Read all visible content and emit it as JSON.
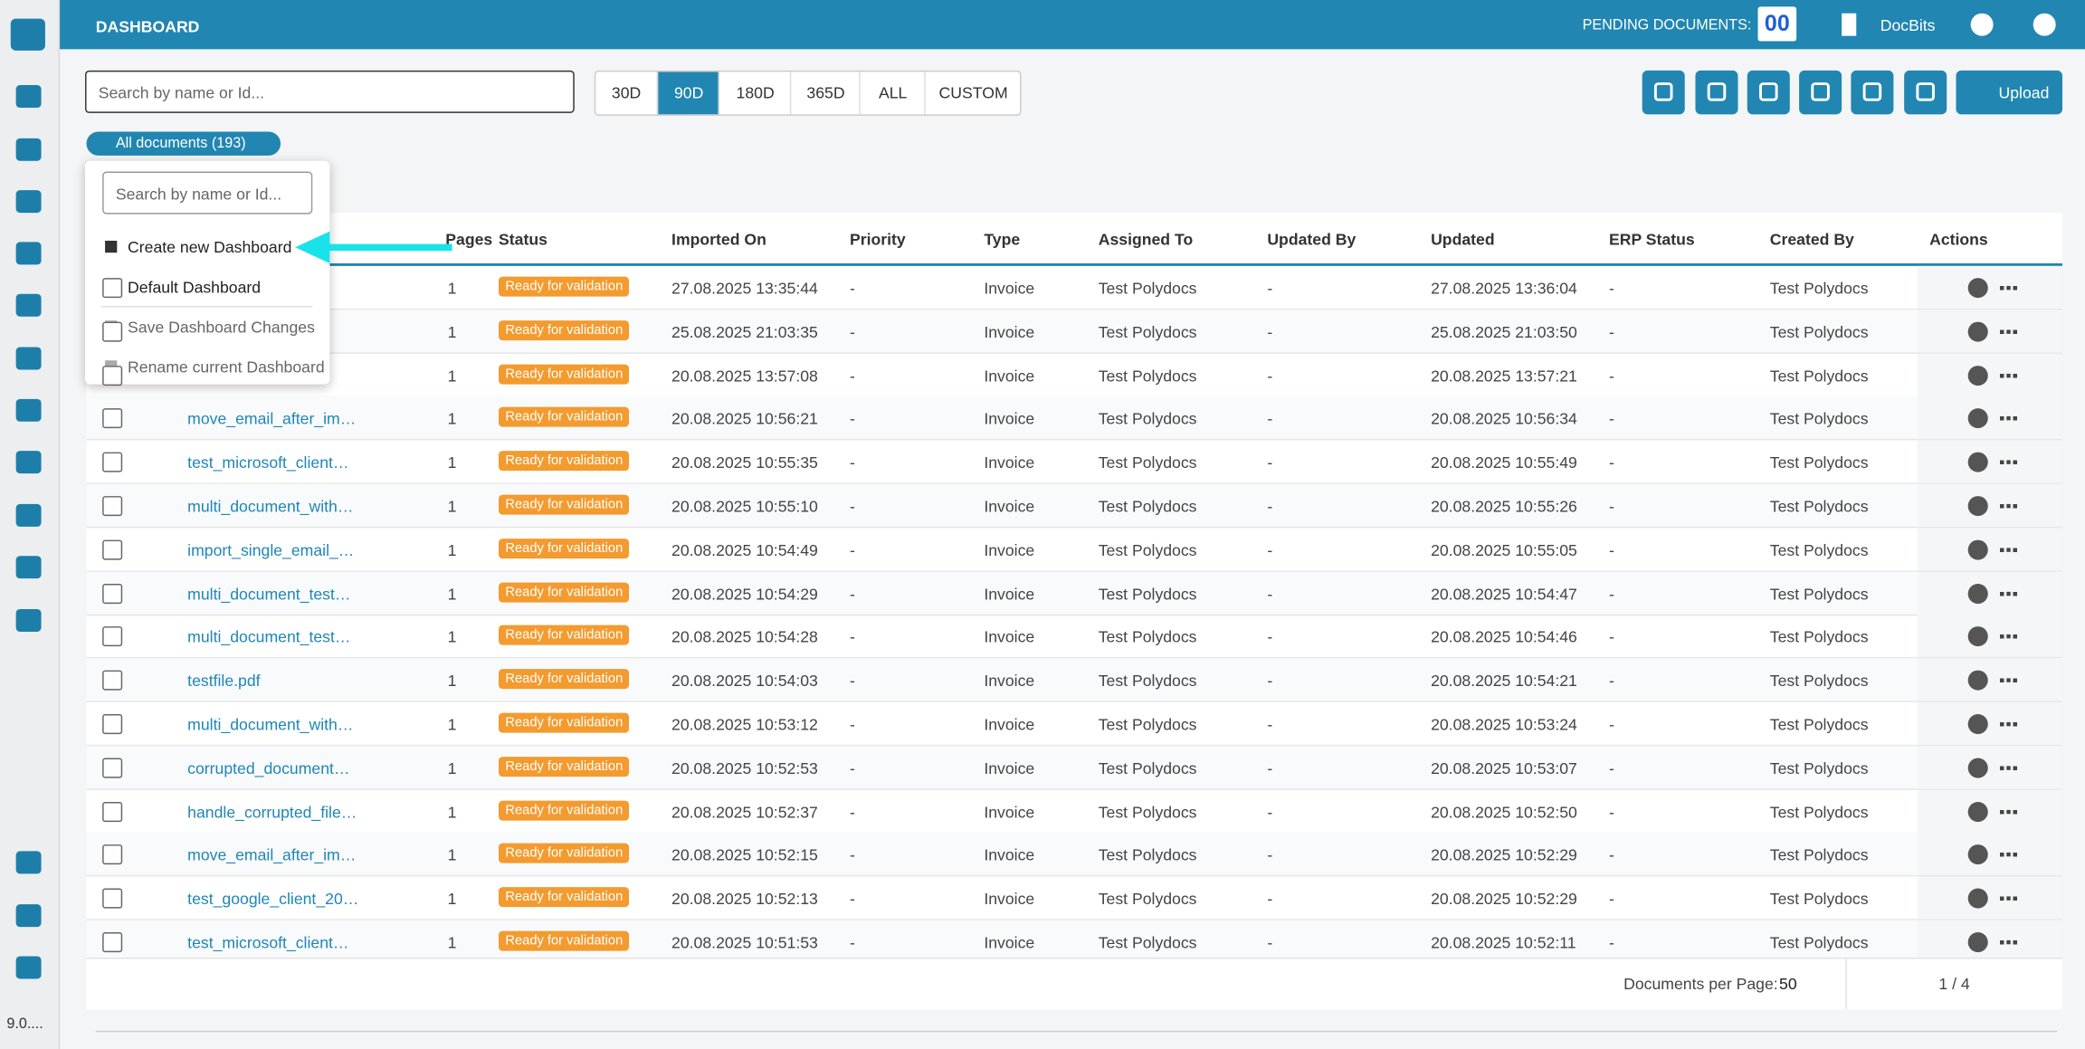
{
  "header": {
    "title": "DASHBOARD",
    "pending_label": "PENDING DOCUMENTS:",
    "pending_count": "00",
    "company": "DocBits"
  },
  "toolbar": {
    "search_placeholder": "Search by name or Id...",
    "ranges": [
      "30D",
      "90D",
      "180D",
      "365D",
      "ALL",
      "CUSTOM"
    ],
    "active_range_index": 1,
    "upload": "Upload"
  },
  "filter": {
    "label": "All documents (193)"
  },
  "menu": {
    "search_placeholder": "Search by name or Id...",
    "items": [
      "Create new Dashboard",
      "Default Dashboard",
      "Save Dashboard Changes",
      "Rename current Dashboard"
    ]
  },
  "table": {
    "columns": [
      "Pages",
      "Status",
      "Imported On",
      "Priority",
      "Type",
      "Assigned To",
      "Updated By",
      "Updated",
      "ERP Status",
      "Created By",
      "Actions"
    ],
    "rows": [
      [
        null,
        1,
        "Ready for validation",
        "27.08.2025 13:35:44",
        "-",
        "Invoice",
        "Test Polydocs",
        "-",
        "27.08.2025 13:36:04",
        "-",
        "Test Polydocs"
      ],
      [
        null,
        1,
        "Ready for validation",
        "25.08.2025 21:03:35",
        "-",
        "Invoice",
        "Test Polydocs",
        "-",
        "25.08.2025 21:03:50",
        "-",
        "Test Polydocs"
      ],
      [
        null,
        1,
        "Ready for validation",
        "20.08.2025 13:57:08",
        "-",
        "Invoice",
        "Test Polydocs",
        "-",
        "20.08.2025 13:57:21",
        "-",
        "Test Polydocs"
      ],
      [
        "move_email_after_im…",
        1,
        "Ready for validation",
        "20.08.2025 10:56:21",
        "-",
        "Invoice",
        "Test Polydocs",
        "-",
        "20.08.2025 10:56:34",
        "-",
        "Test Polydocs"
      ],
      [
        "test_microsoft_client…",
        1,
        "Ready for validation",
        "20.08.2025 10:55:35",
        "-",
        "Invoice",
        "Test Polydocs",
        "-",
        "20.08.2025 10:55:49",
        "-",
        "Test Polydocs"
      ],
      [
        "multi_document_with…",
        1,
        "Ready for validation",
        "20.08.2025 10:55:10",
        "-",
        "Invoice",
        "Test Polydocs",
        "-",
        "20.08.2025 10:55:26",
        "-",
        "Test Polydocs"
      ],
      [
        "import_single_email_…",
        1,
        "Ready for validation",
        "20.08.2025 10:54:49",
        "-",
        "Invoice",
        "Test Polydocs",
        "-",
        "20.08.2025 10:55:05",
        "-",
        "Test Polydocs"
      ],
      [
        "multi_document_test…",
        1,
        "Ready for validation",
        "20.08.2025 10:54:29",
        "-",
        "Invoice",
        "Test Polydocs",
        "-",
        "20.08.2025 10:54:47",
        "-",
        "Test Polydocs"
      ],
      [
        "multi_document_test…",
        1,
        "Ready for validation",
        "20.08.2025 10:54:28",
        "-",
        "Invoice",
        "Test Polydocs",
        "-",
        "20.08.2025 10:54:46",
        "-",
        "Test Polydocs"
      ],
      [
        "testfile.pdf",
        1,
        "Ready for validation",
        "20.08.2025 10:54:03",
        "-",
        "Invoice",
        "Test Polydocs",
        "-",
        "20.08.2025 10:54:21",
        "-",
        "Test Polydocs"
      ],
      [
        "multi_document_with…",
        1,
        "Ready for validation",
        "20.08.2025 10:53:12",
        "-",
        "Invoice",
        "Test Polydocs",
        "-",
        "20.08.2025 10:53:24",
        "-",
        "Test Polydocs"
      ],
      [
        "corrupted_document…",
        1,
        "Ready for validation",
        "20.08.2025 10:52:53",
        "-",
        "Invoice",
        "Test Polydocs",
        "-",
        "20.08.2025 10:53:07",
        "-",
        "Test Polydocs"
      ],
      [
        "handle_corrupted_file…",
        1,
        "Ready for validation",
        "20.08.2025 10:52:37",
        "-",
        "Invoice",
        "Test Polydocs",
        "-",
        "20.08.2025 10:52:50",
        "-",
        "Test Polydocs"
      ],
      [
        "move_email_after_im…",
        1,
        "Ready for validation",
        "20.08.2025 10:52:15",
        "-",
        "Invoice",
        "Test Polydocs",
        "-",
        "20.08.2025 10:52:29",
        "-",
        "Test Polydocs"
      ],
      [
        "test_google_client_20…",
        1,
        "Ready for validation",
        "20.08.2025 10:52:13",
        "-",
        "Invoice",
        "Test Polydocs",
        "-",
        "20.08.2025 10:52:29",
        "-",
        "Test Polydocs"
      ],
      [
        "test_microsoft_client…",
        1,
        "Ready for validation",
        "20.08.2025 10:51:53",
        "-",
        "Invoice",
        "Test Polydocs",
        "-",
        "20.08.2025 10:52:11",
        "-",
        "Test Polydocs"
      ]
    ]
  },
  "footer": {
    "per_page_label": "Documents per Page:",
    "per_page": "50",
    "page": "1 / 4"
  },
  "sidebar": {
    "version": "9.0...."
  }
}
